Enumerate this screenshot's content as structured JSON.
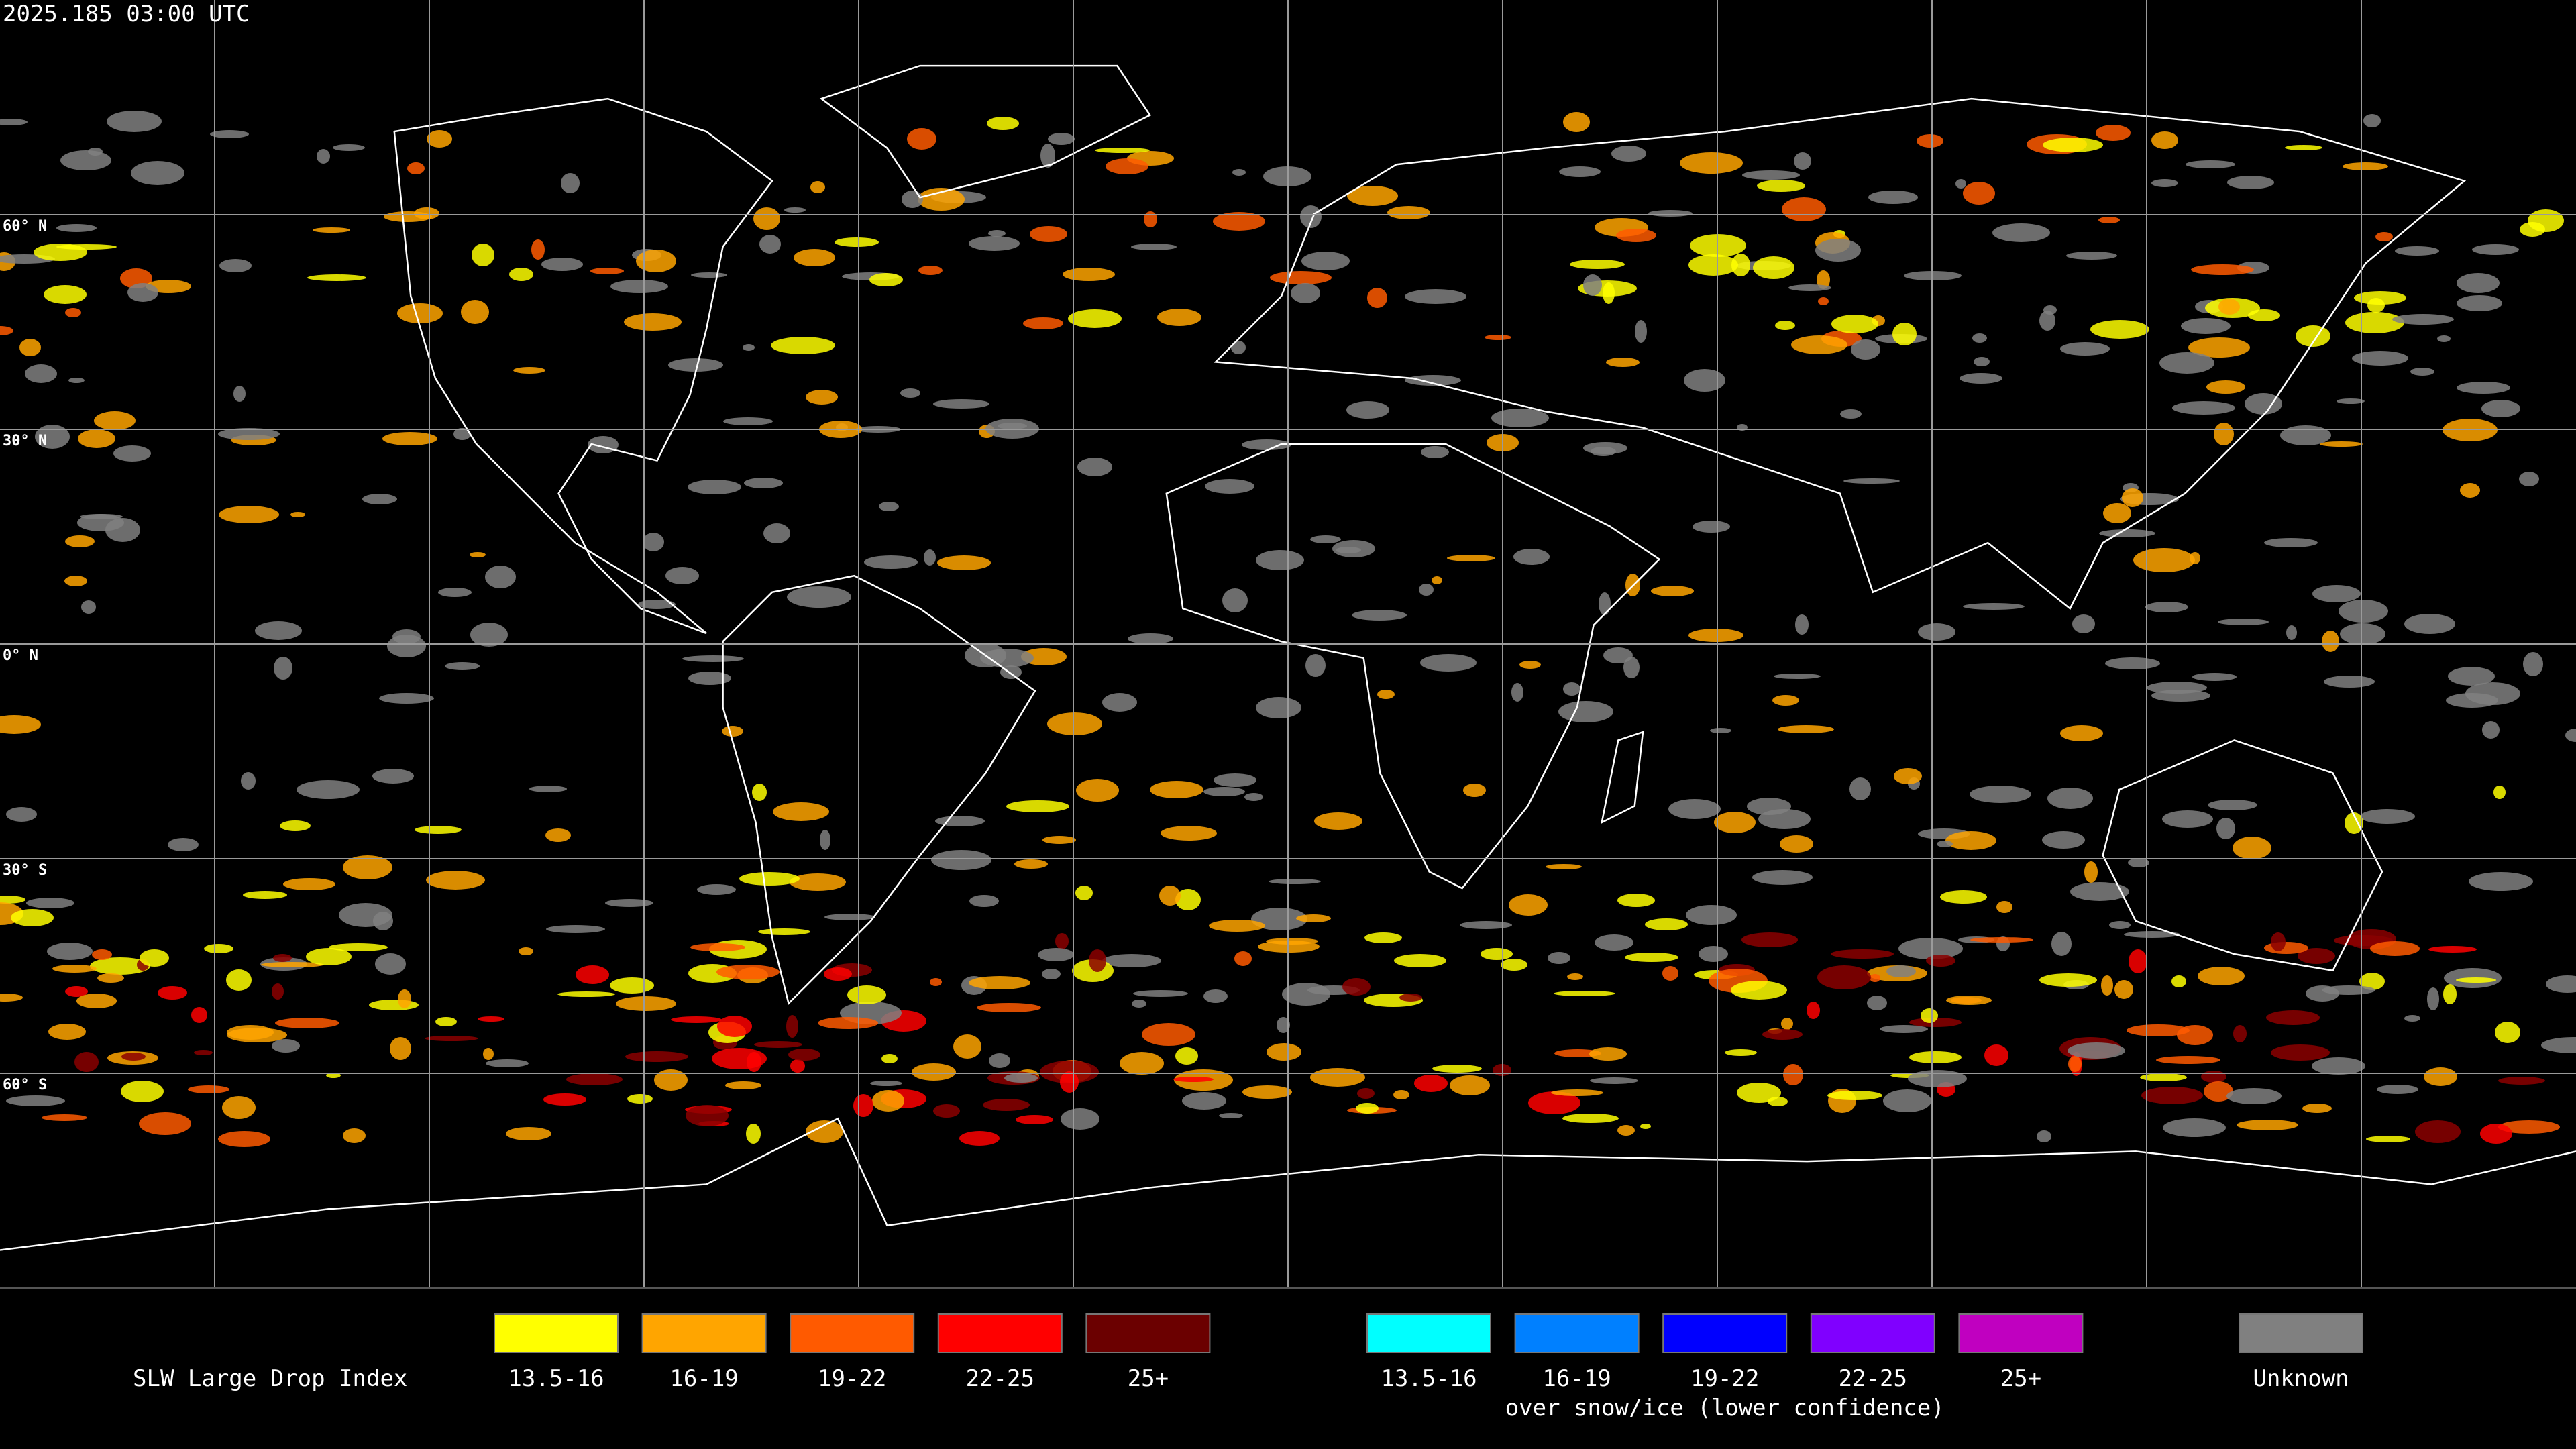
{
  "header": {
    "timestamp": "2025.185 03:00 UTC"
  },
  "map": {
    "latitude_labels": [
      "60° N",
      "30° N",
      "0° N",
      "30° S",
      "60° S"
    ]
  },
  "legend": {
    "title": "SLW Large Drop Index",
    "groups": [
      {
        "items": [
          {
            "label": "13.5-16",
            "color": "#ffff00"
          },
          {
            "label": "16-19",
            "color": "#ffa500"
          },
          {
            "label": "19-22",
            "color": "#ff5a00"
          },
          {
            "label": "22-25",
            "color": "#ff0000"
          },
          {
            "label": "25+",
            "color": "#6b0000"
          }
        ]
      },
      {
        "items": [
          {
            "label": "13.5-16",
            "color": "#00ffff"
          },
          {
            "label": "16-19",
            "color": "#0080ff"
          },
          {
            "label": "19-22",
            "color": "#0000ff"
          },
          {
            "label": "22-25",
            "color": "#8000ff"
          },
          {
            "label": "25+",
            "color": "#c000c0"
          }
        ],
        "caption": "over snow/ice (lower confidence)"
      },
      {
        "items": [
          {
            "label": "Unknown",
            "color": "#808080"
          }
        ]
      }
    ]
  }
}
